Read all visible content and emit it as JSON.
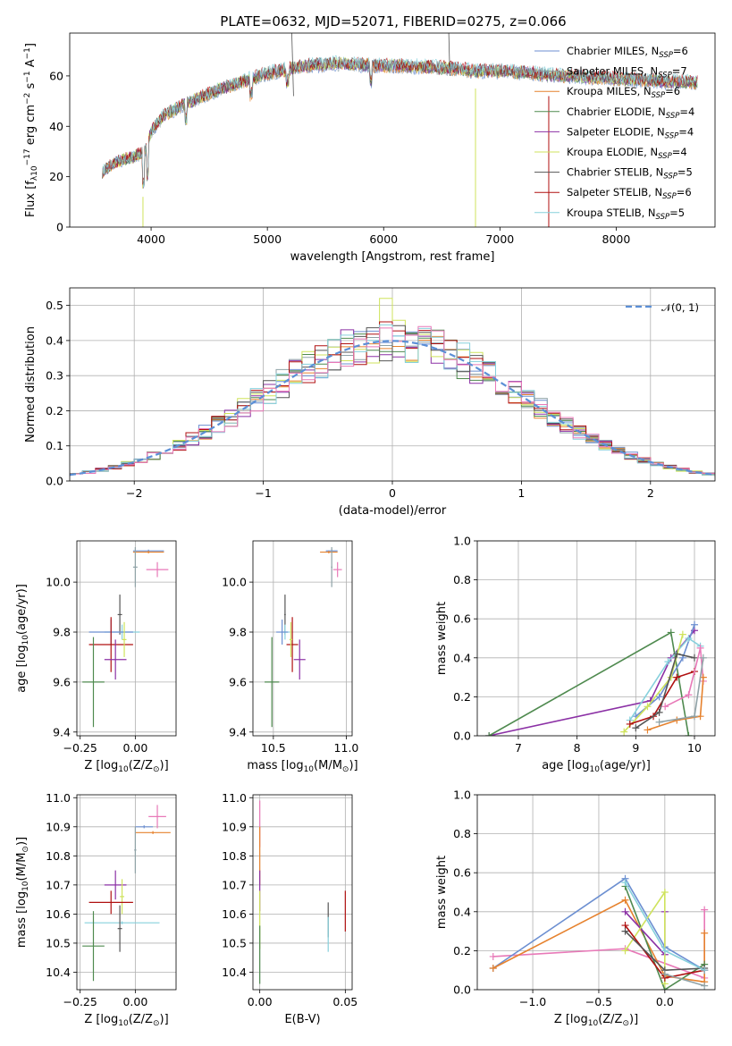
{
  "title": "PLATE=0632, MJD=52071, FIBERID=0275, z=0.066",
  "palette": [
    "#6c8fd1",
    "#8fa2a7",
    "#e6822e",
    "#4f8a4f",
    "#8b30a5",
    "#cfe35c",
    "#555555",
    "#b01010",
    "#86d0dc",
    "#e879b8"
  ],
  "chart_data": [
    {
      "id": "spectrum",
      "type": "line",
      "xlabel": "wavelength [Angstrom, rest frame]",
      "ylabel": "Flux [f",
      "ylabel_parts": [
        "Flux [f",
        "λ",
        "10",
        "−17",
        " erg cm",
        "−2",
        " s",
        "−1",
        " A",
        "−1",
        "]"
      ],
      "xlim": [
        3300,
        8850
      ],
      "ylim": [
        0,
        77
      ],
      "xticks": [
        4000,
        5000,
        6000,
        7000,
        8000
      ],
      "yticks": [
        0,
        20,
        40,
        60
      ],
      "grid": false,
      "legend_position": "top-right",
      "continuum_x": [
        3580,
        3700,
        3850,
        3950,
        4000,
        4100,
        4250,
        4400,
        4600,
        4800,
        5000,
        5200,
        5400,
        5600,
        5800,
        6000,
        6200,
        6400,
        6600,
        6800,
        7000,
        7200,
        7400,
        7600,
        7800,
        8000,
        8200,
        8400,
        8700
      ],
      "continuum_y": [
        22,
        26,
        28,
        30,
        38,
        44,
        48,
        51,
        55,
        58,
        61,
        63,
        64.5,
        65,
        64.5,
        64,
        64,
        63.5,
        63,
        62,
        62,
        61.5,
        60.5,
        60,
        59.5,
        59,
        58.5,
        58,
        57.5
      ],
      "series": [
        {
          "label": "Chabrier MILES, N",
          "n": "6"
        },
        {
          "label": "Salpeter MILES, N",
          "n": "7"
        },
        {
          "label": "Kroupa MILES, N",
          "n": "6"
        },
        {
          "label": "Chabrier ELODIE, N",
          "n": "4"
        },
        {
          "label": "Salpeter ELODIE, N",
          "n": "4"
        },
        {
          "label": "Kroupa ELODIE, N",
          "n": "4"
        },
        {
          "label": "Chabrier STELIB, N",
          "n": "5"
        },
        {
          "label": "Salpeter STELIB, N",
          "n": "6"
        },
        {
          "label": "Kroupa STELIB, N",
          "n": "5"
        }
      ],
      "legend_sub": "SSP"
    },
    {
      "id": "residuals",
      "type": "histogram",
      "xlabel": "(data-model)/error",
      "ylabel": "Normed distribution",
      "xlim": [
        -2.5,
        2.5
      ],
      "ylim": [
        0,
        0.55
      ],
      "xticks": [
        -2,
        -1,
        0,
        1,
        2
      ],
      "xticklabels": [
        "−2",
        "−1",
        "0",
        "1",
        "2"
      ],
      "yticks": [
        0.0,
        0.1,
        0.2,
        0.3,
        0.4,
        0.5
      ],
      "grid": true,
      "bin_width": 0.1,
      "legend_label": "𝒩(0, 1)",
      "legend_position": "top-right",
      "gauss_color": "#5b8fd6"
    },
    {
      "id": "age-vs-Z",
      "type": "scatter",
      "xlabel": "Z [log",
      "xlabel_parts": [
        "Z [log",
        "10",
        "(Z/Z",
        "⊙",
        ")]"
      ],
      "ylabel": "age  [log",
      "ylabel_parts": [
        "age  [log",
        "10",
        "(age/yr)]"
      ],
      "xlim": [
        -0.265,
        0.185
      ],
      "ylim": [
        9.385,
        10.165
      ],
      "xticks": [
        -0.25,
        0.0
      ],
      "xticklabels": [
        "−0.25",
        "0.00"
      ],
      "yticks": [
        9.4,
        9.6,
        9.8,
        10.0
      ],
      "grid": true,
      "points": [
        {
          "x": 0.06,
          "y": 10.125,
          "xe": 0.07,
          "ye": 0.005,
          "c": 0
        },
        {
          "x": 0.06,
          "y": 10.12,
          "xe": 0.07,
          "ye": 0.005,
          "c": 2
        },
        {
          "x": 0.1,
          "y": 10.05,
          "xe": 0.05,
          "ye": 0.03,
          "c": 9
        },
        {
          "x": 0.0,
          "y": 10.06,
          "xe": 0.01,
          "ye": 0.08,
          "c": 1
        },
        {
          "x": -0.07,
          "y": 9.87,
          "xe": 0.01,
          "ye": 0.08,
          "c": 6
        },
        {
          "x": -0.06,
          "y": 9.8,
          "xe": 0.08,
          "ye": 0.03,
          "c": 8
        },
        {
          "x": -0.11,
          "y": 9.8,
          "xe": 0.1,
          "ye": 0.05,
          "c": 0
        },
        {
          "x": -0.11,
          "y": 9.75,
          "xe": 0.1,
          "ye": 0.11,
          "c": 7
        },
        {
          "x": -0.05,
          "y": 9.77,
          "xe": 0.01,
          "ye": 0.07,
          "c": 5
        },
        {
          "x": -0.09,
          "y": 9.69,
          "xe": 0.05,
          "ye": 0.08,
          "c": 4
        },
        {
          "x": -0.19,
          "y": 9.6,
          "xe": 0.05,
          "ye": 0.18,
          "c": 3
        }
      ]
    },
    {
      "id": "age-vs-mass",
      "type": "scatter",
      "xlabel": "mass [log",
      "xlabel_parts": [
        "mass [log",
        "10",
        "(M/M",
        "⊙",
        ")]"
      ],
      "ylabel": "",
      "xlim": [
        10.36,
        11.04
      ],
      "ylim": [
        9.385,
        10.165
      ],
      "xticks": [
        10.5,
        11.0
      ],
      "xticklabels": [
        "10.5",
        "11.0"
      ],
      "yticks": [
        9.4,
        9.6,
        9.8,
        10.0
      ],
      "grid": true,
      "points": [
        {
          "x": 10.9,
          "y": 10.125,
          "xe": 0.04,
          "ye": 0.005,
          "c": 0
        },
        {
          "x": 10.88,
          "y": 10.12,
          "xe": 0.06,
          "ye": 0.005,
          "c": 2
        },
        {
          "x": 10.94,
          "y": 10.05,
          "xe": 0.03,
          "ye": 0.03,
          "c": 9
        },
        {
          "x": 10.9,
          "y": 10.06,
          "xe": 0.005,
          "ye": 0.08,
          "c": 1
        },
        {
          "x": 10.58,
          "y": 9.87,
          "xe": 0.005,
          "ye": 0.08,
          "c": 6
        },
        {
          "x": 10.58,
          "y": 9.8,
          "xe": 0.03,
          "ye": 0.03,
          "c": 8
        },
        {
          "x": 10.56,
          "y": 9.8,
          "xe": 0.04,
          "ye": 0.05,
          "c": 0
        },
        {
          "x": 10.63,
          "y": 9.75,
          "xe": 0.04,
          "ye": 0.11,
          "c": 7
        },
        {
          "x": 10.62,
          "y": 9.77,
          "xe": 0.01,
          "ye": 0.07,
          "c": 5
        },
        {
          "x": 10.68,
          "y": 9.69,
          "xe": 0.04,
          "ye": 0.08,
          "c": 4
        },
        {
          "x": 10.49,
          "y": 9.6,
          "xe": 0.05,
          "ye": 0.18,
          "c": 3
        }
      ]
    },
    {
      "id": "weight-vs-age",
      "type": "line",
      "xlabel": "age  [log",
      "xlabel_parts": [
        "age  [log",
        "10",
        "(age/yr)]"
      ],
      "ylabel": "mass weight",
      "xlim": [
        6.3,
        10.35
      ],
      "ylim": [
        0,
        1
      ],
      "xticks": [
        7,
        8,
        9,
        10
      ],
      "yticks": [
        0.0,
        0.2,
        0.4,
        0.6,
        0.8,
        1.0
      ],
      "grid": true,
      "series": [
        {
          "c": 4,
          "x": [
            6.5,
            9.25,
            9.6,
            10.0
          ],
          "y": [
            0.0,
            0.18,
            0.4,
            0.54
          ]
        },
        {
          "c": 3,
          "x": [
            6.5,
            9.6,
            9.9
          ],
          "y": [
            0.0,
            0.53,
            0.0
          ]
        },
        {
          "c": 0,
          "x": [
            9.0,
            9.4,
            9.8,
            10.0
          ],
          "y": [
            0.1,
            0.2,
            0.4,
            0.57
          ]
        },
        {
          "c": 8,
          "x": [
            8.9,
            9.55,
            9.9,
            10.1
          ],
          "y": [
            0.08,
            0.38,
            0.5,
            0.46
          ]
        },
        {
          "c": 5,
          "x": [
            8.8,
            9.2,
            9.6,
            9.8
          ],
          "y": [
            0.02,
            0.15,
            0.3,
            0.52
          ]
        },
        {
          "c": 7,
          "x": [
            8.9,
            9.3,
            9.7,
            10.0
          ],
          "y": [
            0.06,
            0.1,
            0.3,
            0.33
          ]
        },
        {
          "c": 6,
          "x": [
            9.0,
            9.4,
            9.7,
            10.0
          ],
          "y": [
            0.04,
            0.12,
            0.42,
            0.4
          ]
        },
        {
          "c": 9,
          "x": [
            9.5,
            9.9,
            10.1,
            10.15
          ],
          "y": [
            0.15,
            0.21,
            0.45,
            0.28
          ]
        },
        {
          "c": 2,
          "x": [
            9.2,
            9.7,
            10.1,
            10.15
          ],
          "y": [
            0.03,
            0.08,
            0.1,
            0.3
          ]
        },
        {
          "c": 1,
          "x": [
            9.4,
            10.0,
            10.15
          ],
          "y": [
            0.07,
            0.1,
            0.4
          ]
        }
      ]
    },
    {
      "id": "mass-vs-Z",
      "type": "scatter",
      "xlabel": "Z [log",
      "xlabel_parts": [
        "Z [log",
        "10",
        "(Z/Z",
        "⊙",
        ")]"
      ],
      "ylabel": "mass [log",
      "ylabel_parts": [
        "mass [log",
        "10",
        "(M/M",
        "⊙",
        ")]"
      ],
      "xlim": [
        -0.265,
        0.185
      ],
      "ylim": [
        10.34,
        11.01
      ],
      "xticks": [
        -0.25,
        0.0
      ],
      "xticklabels": [
        "−0.25",
        "0.00"
      ],
      "yticks": [
        10.4,
        10.5,
        10.6,
        10.7,
        10.8,
        10.9,
        11.0
      ],
      "grid": true,
      "points": [
        {
          "x": 0.1,
          "y": 10.935,
          "xe": 0.04,
          "ye": 0.04,
          "c": 9
        },
        {
          "x": 0.04,
          "y": 10.9,
          "xe": 0.04,
          "ye": 0.005,
          "c": 0
        },
        {
          "x": 0.08,
          "y": 10.88,
          "xe": 0.08,
          "ye": 0.005,
          "c": 2
        },
        {
          "x": 0.0,
          "y": 10.82,
          "xe": 0.005,
          "ye": 0.08,
          "c": 1
        },
        {
          "x": -0.09,
          "y": 10.7,
          "xe": 0.05,
          "ye": 0.05,
          "c": 4
        },
        {
          "x": -0.06,
          "y": 10.66,
          "xe": 0.01,
          "ye": 0.06,
          "c": 5
        },
        {
          "x": -0.11,
          "y": 10.64,
          "xe": 0.1,
          "ye": 0.04,
          "c": 7
        },
        {
          "x": -0.06,
          "y": 10.57,
          "xe": 0.17,
          "ye": 0.005,
          "c": 8
        },
        {
          "x": -0.07,
          "y": 10.55,
          "xe": 0.01,
          "ye": 0.08,
          "c": 6
        },
        {
          "x": -0.19,
          "y": 10.49,
          "xe": 0.05,
          "ye": 0.12,
          "c": 3
        }
      ]
    },
    {
      "id": "mass-vs-EBV",
      "type": "scatter",
      "xlabel": "E(B-V)",
      "ylabel": "",
      "xlim": [
        -0.004,
        0.054
      ],
      "ylim": [
        10.34,
        11.01
      ],
      "xticks": [
        0.0,
        0.05
      ],
      "xticklabels": [
        "0.00",
        "0.05"
      ],
      "yticks": [
        10.4,
        10.5,
        10.6,
        10.7,
        10.8,
        10.9,
        11.0
      ],
      "grid": true,
      "points": [
        {
          "x": 0.0,
          "y": 10.91,
          "xe": 0.0,
          "ye": 0.08,
          "c": 9
        },
        {
          "x": 0.0,
          "y": 10.8,
          "xe": 0.0,
          "ye": 0.1,
          "c": 2
        },
        {
          "x": 0.0,
          "y": 10.68,
          "xe": 0.0,
          "ye": 0.07,
          "c": 4
        },
        {
          "x": 0.0,
          "y": 10.58,
          "xe": 0.0,
          "ye": 0.1,
          "c": 5
        },
        {
          "x": 0.0,
          "y": 10.46,
          "xe": 0.0,
          "ye": 0.1,
          "c": 3
        },
        {
          "x": 0.04,
          "y": 10.58,
          "xe": 0.0,
          "ye": 0.06,
          "c": 6
        },
        {
          "x": 0.04,
          "y": 10.53,
          "xe": 0.0,
          "ye": 0.06,
          "c": 8
        },
        {
          "x": 0.05,
          "y": 10.61,
          "xe": 0.0,
          "ye": 0.07,
          "c": 7
        }
      ]
    },
    {
      "id": "weight-vs-Z",
      "type": "line",
      "xlabel": "Z [log",
      "xlabel_parts": [
        "Z [log",
        "10",
        "(Z/Z",
        "⊙",
        ")]"
      ],
      "ylabel": "mass weight",
      "xlim": [
        -1.42,
        0.38
      ],
      "ylim": [
        0,
        1
      ],
      "xticks": [
        -1.0,
        -0.5,
        0.0
      ],
      "xticklabels": [
        "−1.0",
        "−0.5",
        "0.0"
      ],
      "yticks": [
        0.0,
        0.2,
        0.4,
        0.6,
        0.8,
        1.0
      ],
      "grid": true,
      "series": [
        {
          "c": 9,
          "x": [
            -1.3,
            -0.3,
            0.3,
            0.3
          ],
          "y": [
            0.17,
            0.21,
            0.06,
            0.41
          ]
        },
        {
          "c": 0,
          "x": [
            -1.3,
            -0.3,
            0.0,
            0.3
          ],
          "y": [
            0.11,
            0.57,
            0.22,
            0.1
          ]
        },
        {
          "c": 2,
          "x": [
            -1.3,
            -0.3,
            0.0,
            0.3,
            0.3
          ],
          "y": [
            0.11,
            0.46,
            0.07,
            0.04,
            0.29
          ]
        },
        {
          "c": 3,
          "x": [
            -0.3,
            0.0,
            0.3
          ],
          "y": [
            0.53,
            0.0,
            0.13
          ]
        },
        {
          "c": 4,
          "x": [
            -0.3,
            0.0,
            0.0
          ],
          "y": [
            0.4,
            0.18,
            0.4
          ]
        },
        {
          "c": 5,
          "x": [
            -0.3,
            0.0,
            0.0
          ],
          "y": [
            0.2,
            0.5,
            0.03
          ]
        },
        {
          "c": 7,
          "x": [
            -0.3,
            0.0,
            0.3
          ],
          "y": [
            0.33,
            0.06,
            0.1
          ]
        },
        {
          "c": 6,
          "x": [
            -0.3,
            0.0,
            0.3
          ],
          "y": [
            0.3,
            0.1,
            0.11
          ]
        },
        {
          "c": 8,
          "x": [
            -0.3,
            0.0,
            0.3
          ],
          "y": [
            0.55,
            0.2,
            0.1
          ]
        },
        {
          "c": 1,
          "x": [
            0.0,
            0.3
          ],
          "y": [
            0.08,
            0.02
          ]
        }
      ]
    }
  ]
}
